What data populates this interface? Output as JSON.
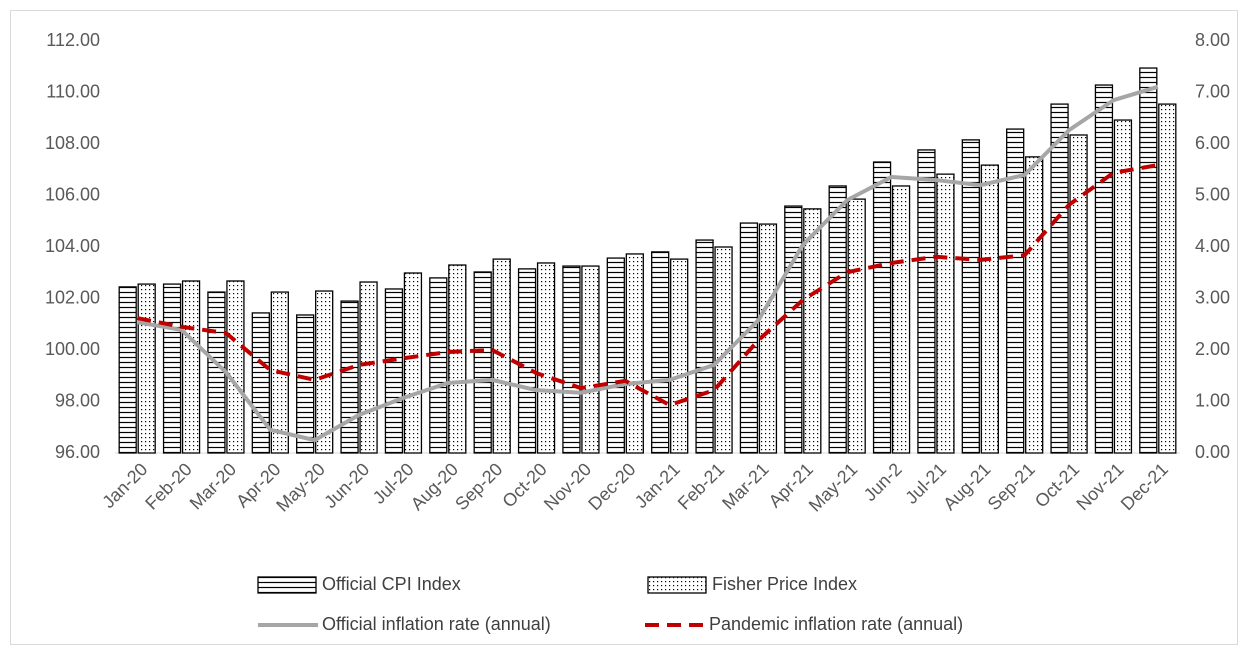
{
  "chart_data": {
    "type": "bar_line",
    "categories": [
      "Jan-20",
      "Feb-20",
      "Mar-20",
      "Apr-20",
      "May-20",
      "Jun-20",
      "Jul-20",
      "Aug-20",
      "Sep-20",
      "Oct-20",
      "Nov-20",
      "Dec-20",
      "Jan-21",
      "Feb-21",
      "Mar-21",
      "Apr-21",
      "May-21",
      "Jun-2",
      "Jul-21",
      "Aug-21",
      "Sep-21",
      "Oct-21",
      "Nov-21",
      "Dec-21"
    ],
    "series": [
      {
        "name": "Official CPI Index",
        "kind": "bar",
        "pattern": "horizontal-stripes",
        "color": "#000000",
        "values": [
          102.45,
          102.56,
          102.25,
          101.44,
          101.36,
          101.9,
          102.37,
          102.8,
          103.03,
          103.15,
          103.26,
          103.57,
          103.81,
          104.27,
          104.93,
          105.59,
          106.37,
          107.3,
          107.77,
          108.16,
          108.58,
          109.55,
          110.29,
          110.95
        ]
      },
      {
        "name": "Fisher Price Index",
        "kind": "bar",
        "pattern": "dots",
        "color": "#000000",
        "values": [
          102.56,
          102.68,
          102.68,
          102.25,
          102.29,
          102.64,
          102.99,
          103.3,
          103.53,
          103.38,
          103.26,
          103.73,
          103.53,
          104.0,
          104.89,
          105.48,
          105.86,
          106.37,
          106.83,
          107.18,
          107.5,
          108.35,
          108.93,
          109.55
        ]
      },
      {
        "name": "Official inflation rate (annual)",
        "kind": "line",
        "axis": "y2",
        "color": "#a6a6a6",
        "dash": "solid",
        "values": [
          2.54,
          2.39,
          1.57,
          0.45,
          0.25,
          0.74,
          1.07,
          1.36,
          1.42,
          1.22,
          1.17,
          1.34,
          1.42,
          1.71,
          2.58,
          4.04,
          4.91,
          5.36,
          5.3,
          5.2,
          5.4,
          6.27,
          6.85,
          7.11
        ]
      },
      {
        "name": "Pandemic inflation rate (annual)",
        "kind": "line",
        "axis": "y2",
        "color": "#c00000",
        "dash": "dashed",
        "values": [
          2.62,
          2.45,
          2.33,
          1.61,
          1.42,
          1.71,
          1.84,
          1.96,
          2.0,
          1.55,
          1.26,
          1.4,
          0.93,
          1.22,
          2.19,
          2.97,
          3.51,
          3.69,
          3.81,
          3.75,
          3.84,
          4.82,
          5.44,
          5.59
        ]
      }
    ],
    "ylim": [
      96,
      112
    ],
    "yticks": [
      {
        "value": 96,
        "label": "96.00"
      },
      {
        "value": 98,
        "label": "98.00"
      },
      {
        "value": 100,
        "label": "100.00"
      },
      {
        "value": 102,
        "label": "102.00"
      },
      {
        "value": 104,
        "label": "104.00"
      },
      {
        "value": 106,
        "label": "106.00"
      },
      {
        "value": 108,
        "label": "108.00"
      },
      {
        "value": 110,
        "label": "110.00"
      },
      {
        "value": 112,
        "label": "112.00"
      }
    ],
    "y2lim": [
      0,
      8
    ],
    "y2ticks": [
      {
        "value": 0,
        "label": "0.00"
      },
      {
        "value": 1,
        "label": "1.00"
      },
      {
        "value": 2,
        "label": "2.00"
      },
      {
        "value": 3,
        "label": "3.00"
      },
      {
        "value": 4,
        "label": "4.00"
      },
      {
        "value": 5,
        "label": "5.00"
      },
      {
        "value": 6,
        "label": "6.00"
      },
      {
        "value": 7,
        "label": "7.00"
      },
      {
        "value": 8,
        "label": "8.00"
      }
    ],
    "grid": false,
    "legend": "bottom"
  }
}
